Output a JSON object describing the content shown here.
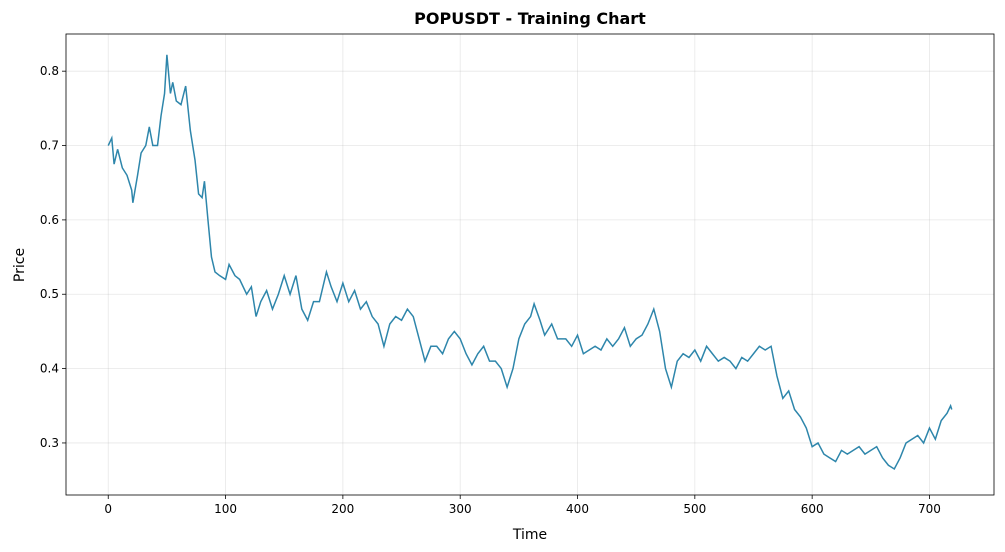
{
  "chart_data": {
    "type": "line",
    "title": "POPUSDT - Training Chart",
    "x_label": "Time",
    "y_label": "Price",
    "x": [
      0,
      3,
      5,
      8,
      12,
      16,
      20,
      21,
      25,
      28,
      32,
      35,
      38,
      42,
      45,
      48,
      50,
      53,
      55,
      58,
      62,
      66,
      70,
      74,
      77,
      80,
      82,
      85,
      88,
      91,
      95,
      100,
      103,
      108,
      112,
      118,
      122,
      126,
      130,
      135,
      140,
      145,
      150,
      155,
      160,
      165,
      170,
      175,
      180,
      186,
      190,
      195,
      200,
      205,
      210,
      215,
      220,
      225,
      230,
      235,
      240,
      245,
      250,
      255,
      260,
      265,
      270,
      275,
      280,
      285,
      290,
      295,
      300,
      305,
      310,
      315,
      320,
      325,
      330,
      335,
      340,
      345,
      350,
      355,
      360,
      363,
      368,
      372,
      378,
      383,
      390,
      395,
      400,
      405,
      410,
      415,
      420,
      425,
      430,
      435,
      440,
      445,
      450,
      455,
      460,
      465,
      470,
      475,
      480,
      485,
      490,
      495,
      500,
      505,
      510,
      515,
      520,
      525,
      530,
      535,
      540,
      545,
      550,
      555,
      560,
      565,
      570,
      575,
      580,
      585,
      590,
      595,
      600,
      605,
      610,
      615,
      620,
      625,
      630,
      635,
      640,
      645,
      650,
      655,
      660,
      665,
      670,
      675,
      680,
      685,
      690,
      695,
      700,
      705,
      710,
      715,
      718,
      719
    ],
    "series": [
      {
        "name": "POPUSDT",
        "color": "#2e86ab",
        "values": [
          0.7,
          0.71,
          0.675,
          0.695,
          0.67,
          0.66,
          0.64,
          0.623,
          0.66,
          0.69,
          0.7,
          0.725,
          0.7,
          0.7,
          0.74,
          0.77,
          0.822,
          0.77,
          0.785,
          0.76,
          0.755,
          0.78,
          0.72,
          0.68,
          0.635,
          0.63,
          0.652,
          0.6,
          0.55,
          0.53,
          0.525,
          0.52,
          0.54,
          0.525,
          0.52,
          0.5,
          0.51,
          0.47,
          0.49,
          0.505,
          0.48,
          0.5,
          0.525,
          0.5,
          0.525,
          0.48,
          0.465,
          0.49,
          0.49,
          0.53,
          0.51,
          0.49,
          0.515,
          0.49,
          0.505,
          0.48,
          0.49,
          0.47,
          0.46,
          0.43,
          0.46,
          0.47,
          0.465,
          0.48,
          0.47,
          0.44,
          0.41,
          0.43,
          0.43,
          0.42,
          0.44,
          0.45,
          0.44,
          0.42,
          0.405,
          0.42,
          0.43,
          0.41,
          0.41,
          0.4,
          0.375,
          0.4,
          0.44,
          0.46,
          0.47,
          0.487,
          0.465,
          0.445,
          0.46,
          0.44,
          0.44,
          0.43,
          0.445,
          0.42,
          0.425,
          0.43,
          0.425,
          0.44,
          0.43,
          0.44,
          0.455,
          0.43,
          0.44,
          0.445,
          0.46,
          0.48,
          0.45,
          0.4,
          0.375,
          0.41,
          0.42,
          0.415,
          0.425,
          0.41,
          0.43,
          0.42,
          0.41,
          0.415,
          0.41,
          0.4,
          0.415,
          0.41,
          0.42,
          0.43,
          0.425,
          0.43,
          0.39,
          0.36,
          0.37,
          0.345,
          0.335,
          0.32,
          0.295,
          0.3,
          0.285,
          0.28,
          0.275,
          0.29,
          0.285,
          0.29,
          0.295,
          0.285,
          0.29,
          0.295,
          0.28,
          0.27,
          0.265,
          0.28,
          0.3,
          0.305,
          0.31,
          0.3,
          0.32,
          0.305,
          0.33,
          0.34,
          0.35,
          0.345
        ]
      }
    ],
    "xlim": [
      -36,
      755
    ],
    "ylim": [
      0.23,
      0.85
    ],
    "xticks": [
      0,
      100,
      200,
      300,
      400,
      500,
      600,
      700
    ],
    "yticks": [
      0.3,
      0.4,
      0.5,
      0.6,
      0.7,
      0.8
    ],
    "grid": true
  }
}
